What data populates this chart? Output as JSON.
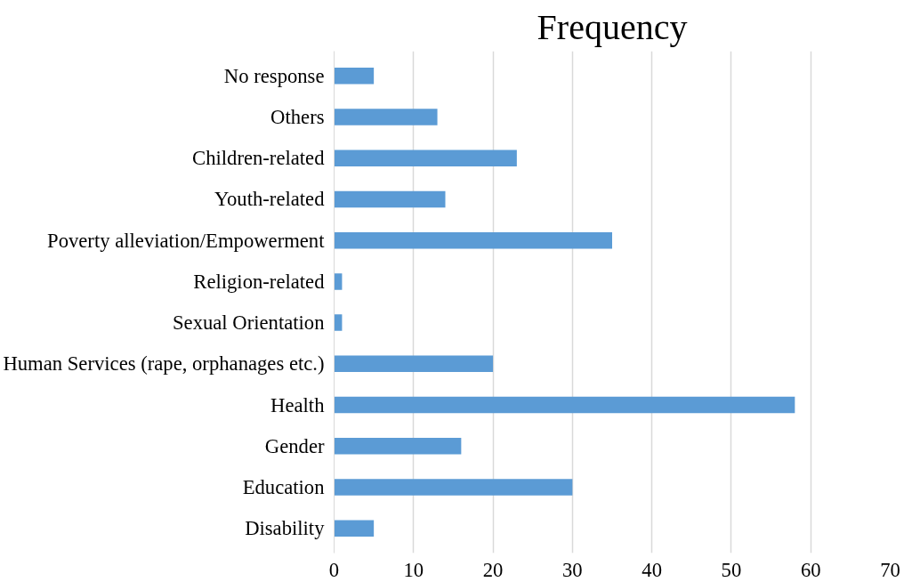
{
  "chart_data": {
    "type": "bar",
    "orientation": "horizontal",
    "title": "Frequency",
    "categories": [
      "No response",
      "Others",
      "Children-related",
      "Youth-related",
      "Poverty alleviation/Empowerment",
      "Religion-related",
      "Sexual Orientation",
      "Human Services (rape, orphanages etc.)",
      "Health",
      "Gender",
      "Education",
      "Disability"
    ],
    "values": [
      5,
      13,
      23,
      14,
      35,
      1,
      1,
      20,
      58,
      16,
      30,
      5
    ],
    "color": "#5b9bd5",
    "xlim": [
      0,
      70
    ],
    "xticks": [
      0,
      10,
      20,
      30,
      40,
      50,
      60,
      70
    ],
    "grid": "x"
  }
}
